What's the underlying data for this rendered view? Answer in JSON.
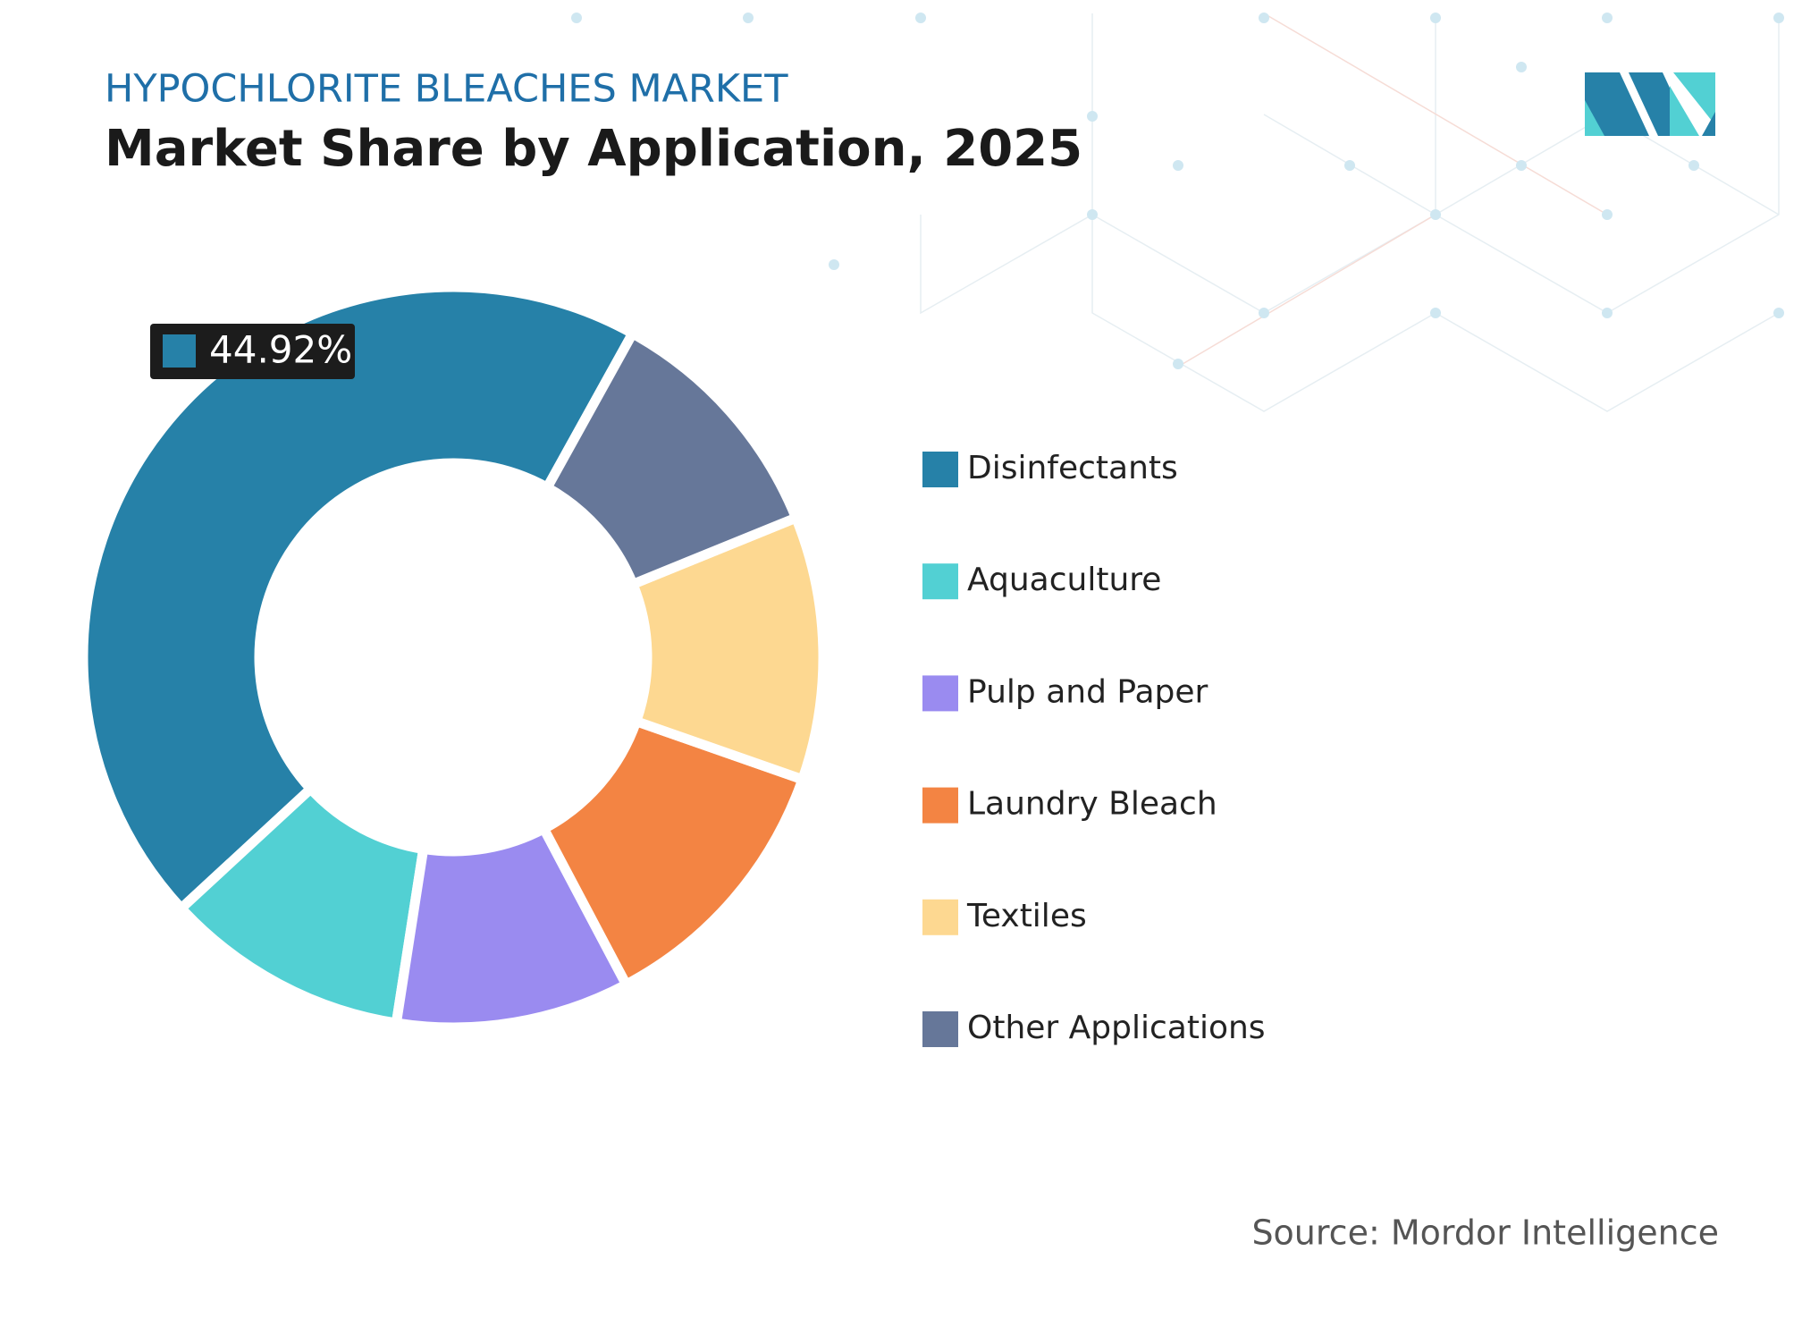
{
  "chart_data": {
    "type": "donut",
    "title": "HYPOCHLORITE BLEACHES MARKET",
    "subtitle": "Market Share by Application, 2025",
    "categories": [
      "Disinfectants",
      "Aquaculture",
      "Pulp and Paper",
      "Laundry Bleach",
      "Textiles",
      "Other Applications"
    ],
    "values": [
      44.92,
      10.68,
      10.2,
      11.9,
      11.5,
      10.8
    ],
    "value_labels": [
      "44.92%",
      null,
      null,
      null,
      null,
      null
    ],
    "colors": [
      "#2681a8",
      "#52d0d3",
      "#9a8bf0",
      "#f38443",
      "#fdd891",
      "#667799"
    ],
    "source": "Source: Mordor Intelligence"
  }
}
